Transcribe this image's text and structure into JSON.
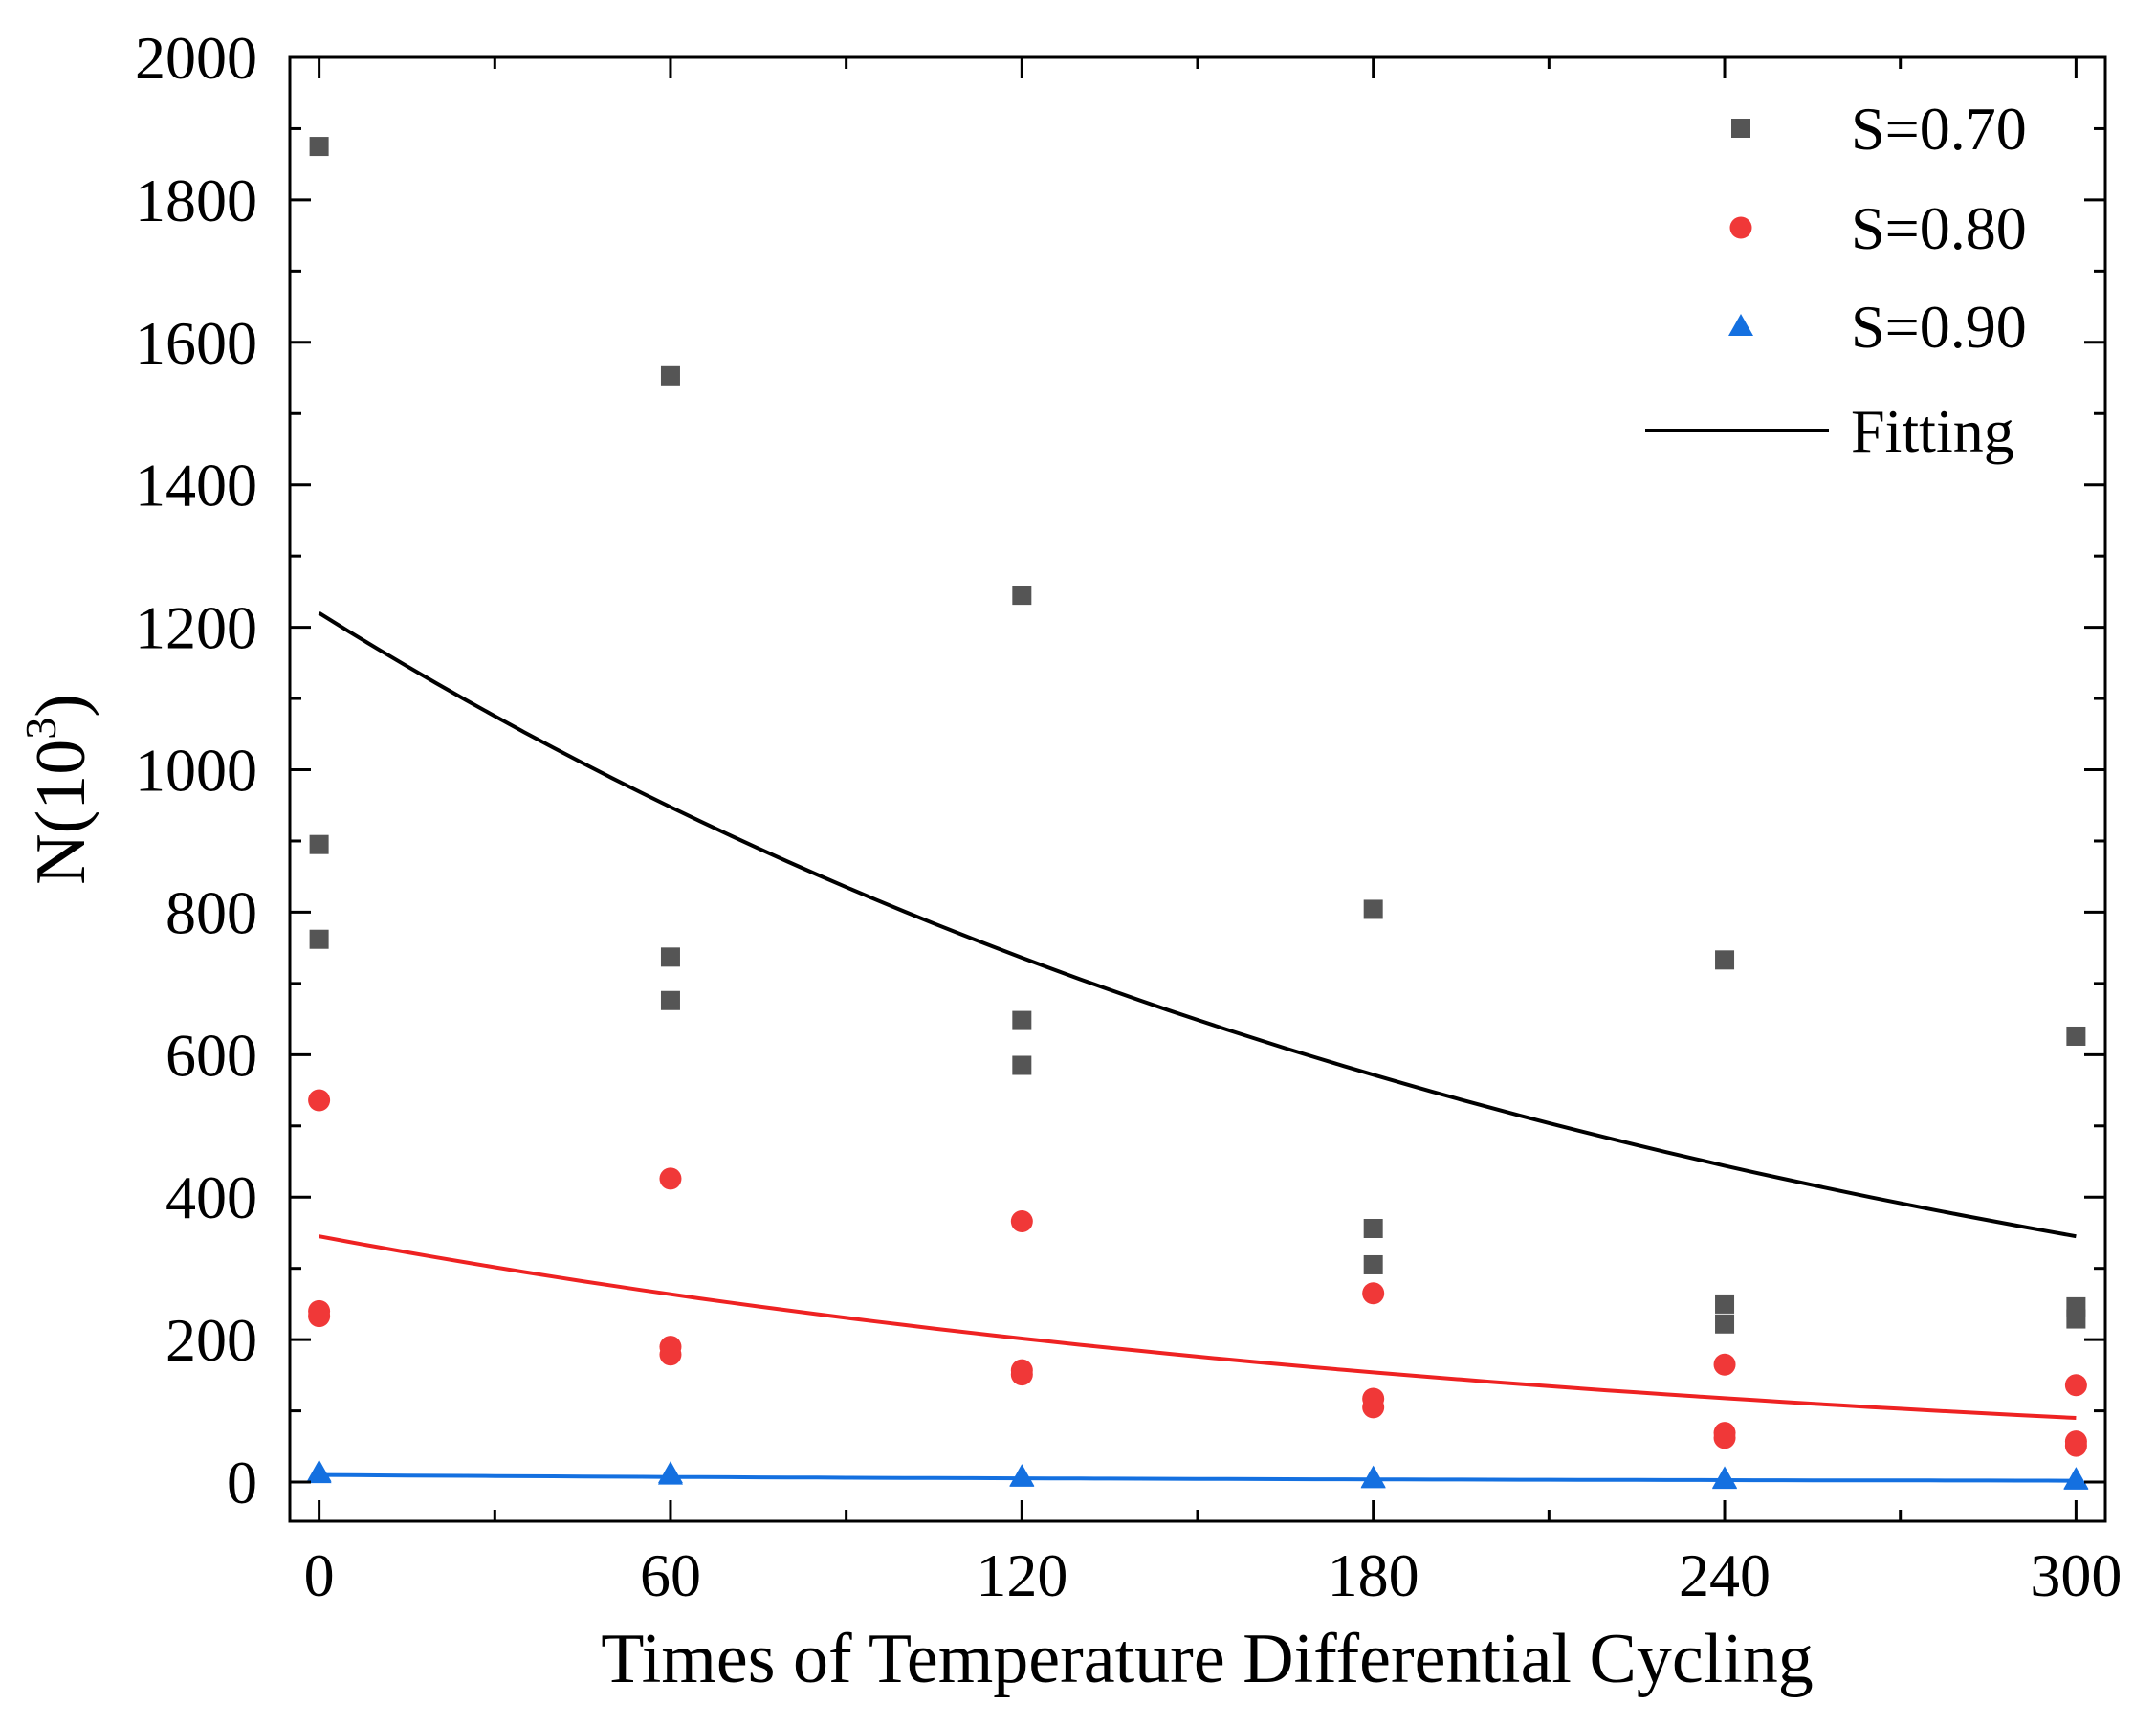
{
  "chart_data": {
    "type": "scatter",
    "title": "",
    "xlabel": "Times of Temperature Differential Cycling",
    "ylabel": {
      "base": "N(10",
      "sup": "3",
      "close": ")"
    },
    "xlim": [
      -5,
      305
    ],
    "ylim": [
      -55,
      2000
    ],
    "xticks": [
      0,
      60,
      120,
      180,
      240,
      300
    ],
    "xtick_labels": [
      "0",
      "60",
      "120",
      "180",
      "240",
      "300"
    ],
    "yticks": [
      0,
      200,
      400,
      600,
      800,
      1000,
      1200,
      1400,
      1600,
      1800,
      2000
    ],
    "ytick_labels": [
      "0",
      "200",
      "400",
      "600",
      "800",
      "1000",
      "1200",
      "1400",
      "1600",
      "1800",
      "2000"
    ],
    "grid": false,
    "legend_position": "top-right",
    "series": [
      {
        "name": "S=0.70",
        "marker": "square",
        "color": "#555555",
        "points": [
          [
            0,
            1875
          ],
          [
            0,
            895
          ],
          [
            0,
            762
          ],
          [
            60,
            1553
          ],
          [
            60,
            737
          ],
          [
            60,
            676
          ],
          [
            120,
            1245
          ],
          [
            120,
            648
          ],
          [
            120,
            585
          ],
          [
            180,
            804
          ],
          [
            180,
            356
          ],
          [
            180,
            305
          ],
          [
            240,
            733
          ],
          [
            240,
            250
          ],
          [
            240,
            222
          ],
          [
            300,
            626
          ],
          [
            300,
            246
          ],
          [
            300,
            229
          ]
        ]
      },
      {
        "name": "S=0.80",
        "marker": "circle",
        "color": "#f03838",
        "points": [
          [
            0,
            536
          ],
          [
            0,
            240
          ],
          [
            0,
            233
          ],
          [
            60,
            426
          ],
          [
            60,
            190
          ],
          [
            60,
            179
          ],
          [
            120,
            366
          ],
          [
            120,
            157
          ],
          [
            120,
            151
          ],
          [
            180,
            265
          ],
          [
            180,
            117
          ],
          [
            180,
            105
          ],
          [
            240,
            165
          ],
          [
            240,
            69
          ],
          [
            240,
            62
          ],
          [
            300,
            136
          ],
          [
            300,
            57
          ],
          [
            300,
            51
          ]
        ]
      },
      {
        "name": "S=0.90",
        "marker": "triangle",
        "color": "#1470e0",
        "points": [
          [
            0,
            14
          ],
          [
            0,
            12
          ],
          [
            60,
            12
          ],
          [
            60,
            10
          ],
          [
            120,
            8
          ],
          [
            120,
            7
          ],
          [
            180,
            6
          ],
          [
            180,
            5
          ],
          [
            240,
            5
          ],
          [
            240,
            4
          ],
          [
            300,
            4
          ],
          [
            300,
            3
          ]
        ]
      }
    ],
    "fits": [
      {
        "name": "Fitting",
        "legend": true,
        "color": "#000000",
        "x": [
          0,
          300
        ],
        "y0": 1220,
        "y1": 345
      },
      {
        "name": "Fitting S=0.80",
        "legend": false,
        "color": "#ee2222",
        "x": [
          0,
          300
        ],
        "y0": 345,
        "y1": 90
      },
      {
        "name": "Fitting S=0.90",
        "legend": false,
        "color": "#1470e0",
        "x": [
          0,
          300
        ],
        "y0": 10,
        "y1": 2
      }
    ]
  }
}
